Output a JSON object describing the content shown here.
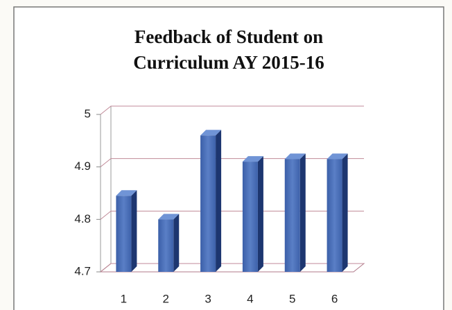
{
  "chart_data": {
    "type": "bar",
    "title": [
      "Feedback of Student on",
      "Curriculum AY 2015-16"
    ],
    "categories": [
      "1",
      "2",
      "3",
      "4",
      "5",
      "6"
    ],
    "values": [
      4.845,
      4.8,
      4.96,
      4.91,
      4.915,
      4.915
    ],
    "color": "#4a6fb8",
    "ylim": [
      4.7,
      5
    ],
    "yticks": [
      4.7,
      4.8,
      4.9,
      5
    ],
    "grid": true
  }
}
